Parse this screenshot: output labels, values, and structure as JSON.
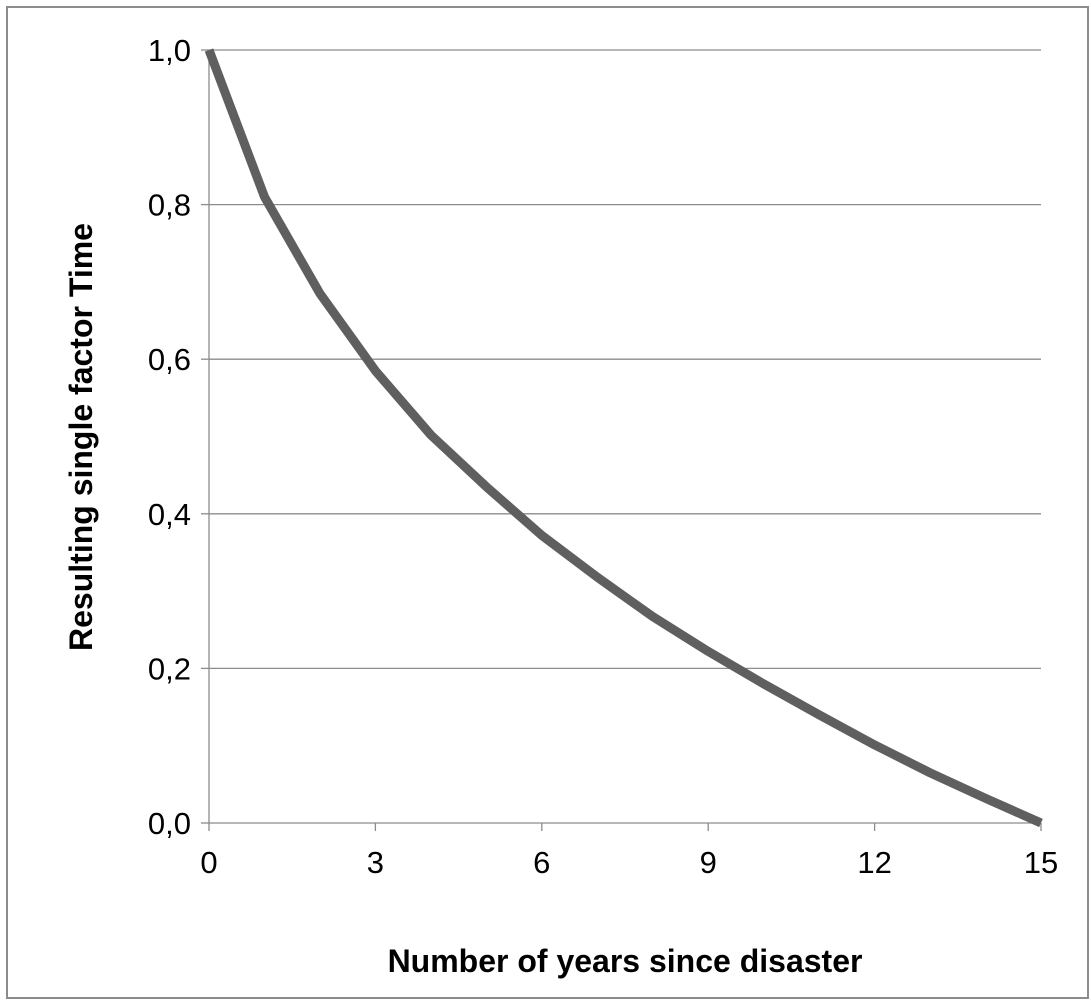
{
  "chart_data": {
    "type": "line",
    "title": "",
    "xlabel": "Number of years since disaster",
    "ylabel": "Resulting single factor Time",
    "xlim": [
      0,
      15
    ],
    "ylim": [
      0,
      1
    ],
    "x_ticks": [
      "0",
      "3",
      "6",
      "9",
      "12",
      "15"
    ],
    "x_tick_values": [
      0,
      3,
      6,
      9,
      12,
      15
    ],
    "y_ticks": [
      "0,0",
      "0,2",
      "0,4",
      "0,6",
      "0,8",
      "1,0"
    ],
    "y_tick_values": [
      0,
      0.2,
      0.4,
      0.6,
      0.8,
      1.0
    ],
    "grid": "horizontal",
    "legend": "none",
    "series": [
      {
        "color": "#5f5f5f",
        "x": [
          0,
          1,
          2,
          3,
          4,
          5,
          6,
          7,
          8,
          9,
          10,
          11,
          12,
          13,
          14,
          15
        ],
        "y": [
          1.0,
          0.81,
          0.685,
          0.585,
          0.502,
          0.435,
          0.372,
          0.318,
          0.267,
          0.222,
          0.18,
          0.14,
          0.101,
          0.065,
          0.032,
          0.0
        ]
      }
    ]
  }
}
